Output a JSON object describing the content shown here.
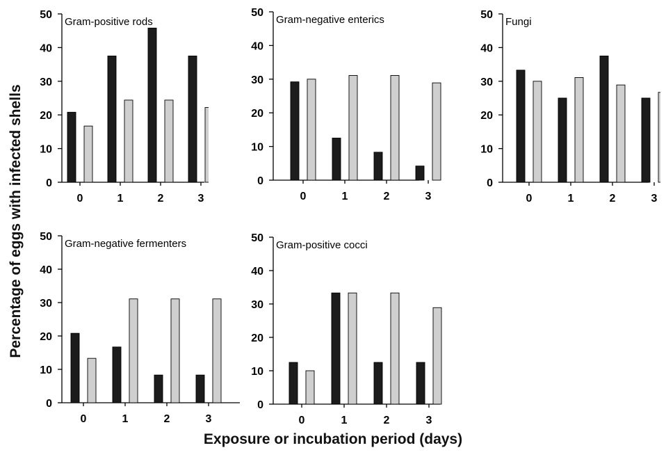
{
  "figure": {
    "ylabel": "Percentage of eggs with infected shells",
    "xlabel": "Exposure or incubation period (days)",
    "colors": {
      "dark": "#1c1c1c",
      "light": "#cfcfcf"
    }
  },
  "chart_data": [
    {
      "type": "bar",
      "title": "Gram-positive rods",
      "categories": [
        "0",
        "1",
        "2",
        "3"
      ],
      "series": [
        {
          "values": [
            20.8,
            37.5,
            45.8,
            37.5
          ]
        },
        {
          "values": [
            16.7,
            24.4,
            24.4,
            22.2
          ]
        }
      ],
      "ylim": [
        0,
        50
      ],
      "yticks": [
        0,
        10,
        20,
        30,
        40,
        50
      ]
    },
    {
      "type": "bar",
      "title": "Gram-negative enterics",
      "categories": [
        "0",
        "1",
        "2",
        "3"
      ],
      "series": [
        {
          "values": [
            29.2,
            12.5,
            8.3,
            4.2
          ]
        },
        {
          "values": [
            30.0,
            31.1,
            31.1,
            28.9
          ]
        }
      ],
      "ylim": [
        0,
        50
      ],
      "yticks": [
        0,
        10,
        20,
        30,
        40,
        50
      ]
    },
    {
      "type": "bar",
      "title": "Fungi",
      "categories": [
        "0",
        "1",
        "2",
        "3"
      ],
      "series": [
        {
          "values": [
            33.3,
            25.0,
            37.5,
            25.0
          ]
        },
        {
          "values": [
            30.0,
            31.1,
            28.9,
            26.7
          ]
        }
      ],
      "ylim": [
        0,
        50
      ],
      "yticks": [
        0,
        10,
        20,
        30,
        40,
        50
      ]
    },
    {
      "type": "bar",
      "title": "Gram-negative fermenters",
      "categories": [
        "0",
        "1",
        "2",
        "3"
      ],
      "series": [
        {
          "values": [
            20.8,
            16.7,
            8.3,
            8.3
          ]
        },
        {
          "values": [
            13.3,
            31.1,
            31.1,
            31.1
          ]
        }
      ],
      "ylim": [
        0,
        50
      ],
      "yticks": [
        0,
        10,
        20,
        30,
        40,
        50
      ]
    },
    {
      "type": "bar",
      "title": "Gram-positive cocci",
      "categories": [
        "0",
        "1",
        "2",
        "3"
      ],
      "series": [
        {
          "values": [
            12.5,
            33.3,
            12.5,
            12.5
          ]
        },
        {
          "values": [
            10.0,
            33.3,
            33.3,
            28.9
          ]
        }
      ],
      "ylim": [
        0,
        50
      ],
      "yticks": [
        0,
        10,
        20,
        30,
        40,
        50
      ]
    }
  ]
}
